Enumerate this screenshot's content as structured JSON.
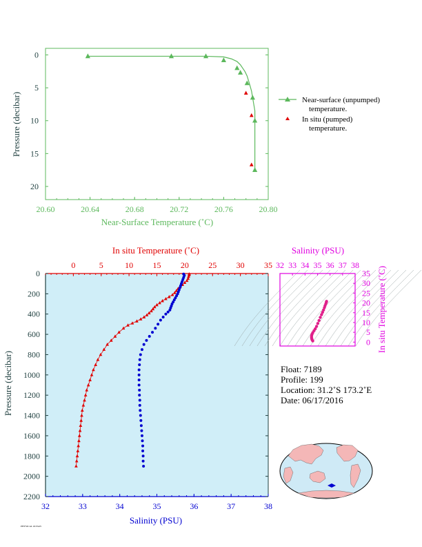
{
  "chart_data": [
    {
      "id": "near_surface",
      "type": "line",
      "xlabel": "Near-Surface Temperature (˚C)",
      "ylabel": "Pressure (decibar)",
      "xlim": [
        20.6,
        20.8
      ],
      "ylim": [
        22,
        -1
      ],
      "xticks": [
        "20.60",
        "20.64",
        "20.68",
        "20.72",
        "20.76",
        "20.80"
      ],
      "yticks": [
        "0",
        "5",
        "10",
        "15",
        "20"
      ],
      "series": [
        {
          "name": "Near-surface (unpumped) temperature.",
          "color": "#5cb85c",
          "points": [
            [
              20.638,
              0.2
            ],
            [
              20.713,
              0.2
            ],
            [
              20.744,
              0.2
            ],
            [
              20.76,
              0.3
            ],
            [
              20.767,
              0.6
            ],
            [
              20.772,
              1.0
            ],
            [
              20.775,
              1.5
            ],
            [
              20.777,
              2.0
            ],
            [
              20.779,
              2.5
            ],
            [
              20.781,
              3.2
            ],
            [
              20.783,
              4.3
            ],
            [
              20.785,
              5.5
            ],
            [
              20.786,
              6.5
            ],
            [
              20.787,
              7.5
            ],
            [
              20.788,
              8.5
            ],
            [
              20.788,
              10.0
            ],
            [
              20.788,
              17.5
            ]
          ],
          "markers": [
            [
              20.638,
              0.2
            ],
            [
              20.713,
              0.2
            ],
            [
              20.744,
              0.2
            ],
            [
              20.76,
              0.8
            ],
            [
              20.772,
              2.0
            ],
            [
              20.775,
              2.7
            ],
            [
              20.781,
              4.3
            ],
            [
              20.786,
              6.5
            ],
            [
              20.788,
              10.0
            ],
            [
              20.788,
              17.5
            ]
          ]
        },
        {
          "name": "In situ (pumped) temperature.",
          "color": "#e00000",
          "points": [
            [
              20.78,
              5.8
            ],
            [
              20.785,
              9.2
            ],
            [
              20.785,
              16.7
            ]
          ]
        }
      ]
    },
    {
      "id": "profile",
      "type": "scatter",
      "top_axis_label": "In situ Temperature (˚C)",
      "bottom_axis_label": "Salinity (PSU)",
      "ylabel": "Pressure (decibar)",
      "temp_lim": [
        -5,
        35
      ],
      "sal_lim": [
        32,
        38
      ],
      "ylim": [
        2200,
        0
      ],
      "temp_ticks": [
        "0",
        "5",
        "10",
        "15",
        "20",
        "25",
        "30",
        "35"
      ],
      "sal_ticks": [
        "32",
        "33",
        "34",
        "35",
        "36",
        "37",
        "38"
      ],
      "yticks": [
        "0",
        "200",
        "400",
        "600",
        "800",
        "1000",
        "1200",
        "1400",
        "1600",
        "1800",
        "2000",
        "2200"
      ],
      "temperature": [
        [
          20.8,
          5
        ],
        [
          20.8,
          15
        ],
        [
          20.7,
          30
        ],
        [
          20.6,
          50
        ],
        [
          20.4,
          70
        ],
        [
          20.0,
          90
        ],
        [
          19.6,
          110
        ],
        [
          19.2,
          130
        ],
        [
          18.8,
          150
        ],
        [
          18.5,
          170
        ],
        [
          18.2,
          190
        ],
        [
          17.8,
          210
        ],
        [
          17.2,
          230
        ],
        [
          16.6,
          250
        ],
        [
          16.0,
          270
        ],
        [
          15.5,
          290
        ],
        [
          15.0,
          310
        ],
        [
          14.6,
          330
        ],
        [
          14.3,
          350
        ],
        [
          14.0,
          370
        ],
        [
          13.6,
          390
        ],
        [
          13.2,
          410
        ],
        [
          12.7,
          430
        ],
        [
          12.1,
          450
        ],
        [
          11.4,
          470
        ],
        [
          10.6,
          490
        ],
        [
          9.8,
          510
        ],
        [
          9.0,
          540
        ],
        [
          8.2,
          580
        ],
        [
          7.5,
          620
        ],
        [
          6.8,
          660
        ],
        [
          6.1,
          700
        ],
        [
          5.5,
          750
        ],
        [
          4.9,
          800
        ],
        [
          4.4,
          850
        ],
        [
          4.0,
          900
        ],
        [
          3.6,
          950
        ],
        [
          3.3,
          1000
        ],
        [
          3.0,
          1050
        ],
        [
          2.7,
          1100
        ],
        [
          2.4,
          1150
        ],
        [
          2.2,
          1200
        ],
        [
          2.0,
          1250
        ],
        [
          1.8,
          1300
        ],
        [
          1.6,
          1350
        ],
        [
          1.5,
          1400
        ],
        [
          1.4,
          1450
        ],
        [
          1.3,
          1500
        ],
        [
          1.2,
          1550
        ],
        [
          1.1,
          1600
        ],
        [
          1.0,
          1650
        ],
        [
          0.9,
          1700
        ],
        [
          0.8,
          1750
        ],
        [
          0.7,
          1800
        ],
        [
          0.6,
          1850
        ],
        [
          0.5,
          1900
        ]
      ],
      "salinity": [
        [
          35.72,
          5
        ],
        [
          35.74,
          20
        ],
        [
          35.72,
          40
        ],
        [
          35.7,
          60
        ],
        [
          35.68,
          80
        ],
        [
          35.66,
          100
        ],
        [
          35.64,
          120
        ],
        [
          35.62,
          140
        ],
        [
          35.6,
          160
        ],
        [
          35.58,
          180
        ],
        [
          35.56,
          200
        ],
        [
          35.53,
          220
        ],
        [
          35.5,
          240
        ],
        [
          35.47,
          260
        ],
        [
          35.44,
          280
        ],
        [
          35.41,
          300
        ],
        [
          35.39,
          320
        ],
        [
          35.37,
          340
        ],
        [
          35.35,
          360
        ],
        [
          35.3,
          380
        ],
        [
          35.24,
          400
        ],
        [
          35.17,
          430
        ],
        [
          35.1,
          460
        ],
        [
          35.03,
          500
        ],
        [
          34.96,
          540
        ],
        [
          34.88,
          580
        ],
        [
          34.8,
          620
        ],
        [
          34.72,
          660
        ],
        [
          34.65,
          700
        ],
        [
          34.6,
          750
        ],
        [
          34.56,
          800
        ],
        [
          34.54,
          850
        ],
        [
          34.53,
          900
        ],
        [
          34.52,
          950
        ],
        [
          34.52,
          1000
        ],
        [
          34.52,
          1050
        ],
        [
          34.52,
          1100
        ],
        [
          34.53,
          1150
        ],
        [
          34.53,
          1200
        ],
        [
          34.54,
          1250
        ],
        [
          34.54,
          1300
        ],
        [
          34.55,
          1350
        ],
        [
          34.56,
          1400
        ],
        [
          34.57,
          1450
        ],
        [
          34.58,
          1500
        ],
        [
          34.59,
          1550
        ],
        [
          34.6,
          1600
        ],
        [
          34.61,
          1650
        ],
        [
          34.62,
          1700
        ],
        [
          34.62,
          1750
        ],
        [
          34.63,
          1800
        ],
        [
          34.63,
          1850
        ],
        [
          34.64,
          1900
        ]
      ]
    },
    {
      "id": "ts_diagram",
      "type": "scatter",
      "top_axis_label": "Salinity (PSU)",
      "right_axis_label": "In situ Temperature (˚C)",
      "sal_lim": [
        32,
        38
      ],
      "temp_lim": [
        -2,
        35
      ],
      "sal_ticks": [
        "32",
        "33",
        "34",
        "35",
        "36",
        "37",
        "38"
      ],
      "temp_ticks": [
        "0",
        "5",
        "10",
        "15",
        "20",
        "25",
        "30",
        "35"
      ],
      "points": [
        [
          35.72,
          20.8
        ],
        [
          35.7,
          20.3
        ],
        [
          35.66,
          19.5
        ],
        [
          35.6,
          18.6
        ],
        [
          35.55,
          17.6
        ],
        [
          35.48,
          16.4
        ],
        [
          35.4,
          15.2
        ],
        [
          35.32,
          14.0
        ],
        [
          35.22,
          12.6
        ],
        [
          35.12,
          11.0
        ],
        [
          35.02,
          9.5
        ],
        [
          34.92,
          8.0
        ],
        [
          34.82,
          6.8
        ],
        [
          34.72,
          5.8
        ],
        [
          34.62,
          4.8
        ],
        [
          34.56,
          4.0
        ],
        [
          34.53,
          3.3
        ],
        [
          34.52,
          2.6
        ],
        [
          34.53,
          2.0
        ],
        [
          34.55,
          1.5
        ],
        [
          34.58,
          1.0
        ],
        [
          34.62,
          0.6
        ]
      ]
    }
  ],
  "legend": {
    "near_surface_line1": "Near-surface (unpumped)",
    "near_surface_line2": "temperature.",
    "in_situ_line1": "In situ (pumped)",
    "in_situ_line2": "temperature."
  },
  "info": {
    "float": "Float:  7189",
    "profile": "Profile:  199",
    "location": "Location:  31.2˚S  173.2˚E",
    "date": "Date:  06/17/2016"
  },
  "footer": "PHYSICAL OCEAN",
  "colors": {
    "green": "#5cb85c",
    "red": "#e00000",
    "blue": "#0000d0",
    "magenta": "#e000e0",
    "axis_dark": "#1f3f3f",
    "profile_bg": "#d0eef8"
  }
}
